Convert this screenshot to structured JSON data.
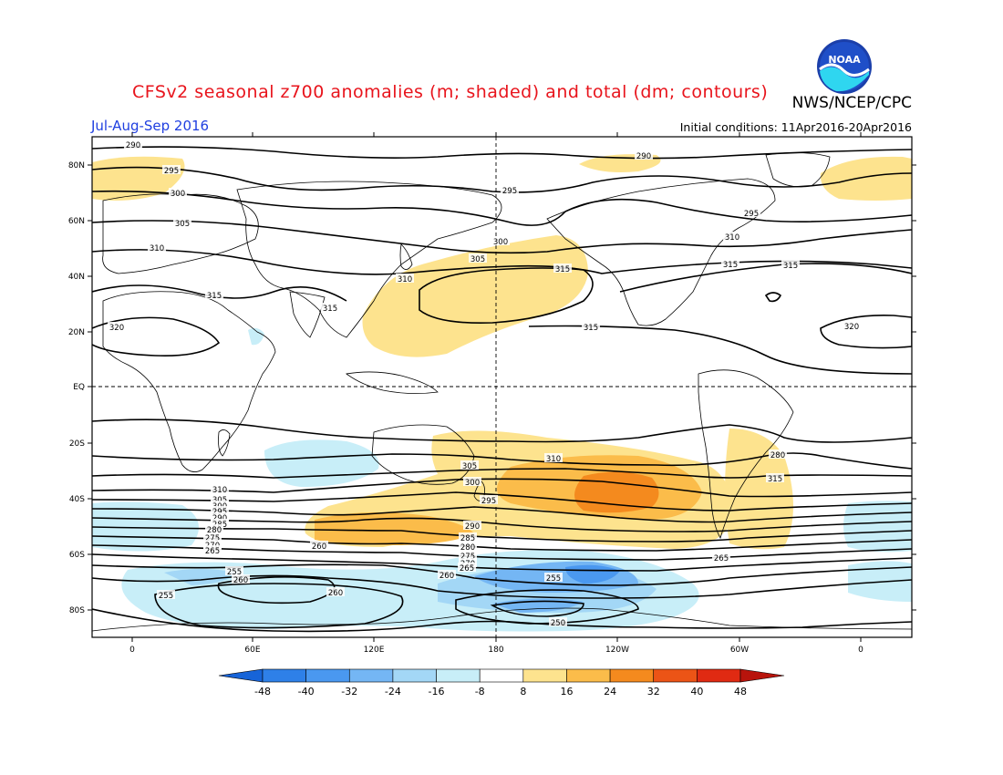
{
  "header": {
    "title": "CFSv2 seasonal z700 anomalies (m; shaded) and total (dm; contours)",
    "agency": "NWS/NCEP/CPC",
    "period": "Jul-Aug-Sep 2016",
    "initial_conditions": "Initial conditions: 11Apr2016-20Apr2016"
  },
  "logo": {
    "text": "NOAA",
    "icon": "noaa-logo"
  },
  "map": {
    "projection": "cylindrical-equidistant",
    "central_longitude": "0",
    "lat_ticks": [
      "80N",
      "60N",
      "40N",
      "20N",
      "EQ",
      "20S",
      "40S",
      "60S",
      "80S"
    ],
    "lon_ticks": [
      "0",
      "60E",
      "120E",
      "180",
      "120W",
      "60W",
      "0"
    ],
    "grid": "dashed lines at equator and 180"
  },
  "contour_labels": [
    "290",
    "295",
    "300",
    "305",
    "310",
    "315",
    "320",
    "290",
    "295",
    "295",
    "300",
    "305",
    "310",
    "315",
    "315",
    "320",
    "310",
    "315",
    "315",
    "315",
    "310",
    "305",
    "300",
    "295",
    "290",
    "285",
    "280",
    "275",
    "270",
    "265",
    "260",
    "255",
    "250",
    "310",
    "305",
    "300",
    "295",
    "290",
    "285",
    "280",
    "275",
    "270",
    "265",
    "260",
    "255",
    "260",
    "255",
    "260",
    "265",
    "280",
    "315",
    "310"
  ],
  "colorbar": {
    "labels": [
      "-48",
      "-40",
      "-32",
      "-24",
      "-16",
      "-8",
      "8",
      "16",
      "24",
      "32",
      "40",
      "48"
    ],
    "colors": [
      "#1764d8",
      "#2e80e8",
      "#4a98f0",
      "#74b6f4",
      "#a3d7f6",
      "#c8eef8",
      "#ffffff",
      "#fde38e",
      "#fbbc4a",
      "#f48a1e",
      "#ec5416",
      "#e02a12",
      "#b8140c"
    ]
  },
  "chart_data": {
    "type": "heatmap",
    "title": "CFSv2 seasonal z700 anomalies (m; shaded) and total (dm; contours)",
    "variable": "z700",
    "anomaly_units": "m",
    "contour_units": "dm",
    "contour_levels": [
      250,
      255,
      260,
      265,
      270,
      275,
      280,
      285,
      290,
      295,
      300,
      305,
      310,
      315,
      320
    ],
    "anomaly_levels": [
      -48,
      -40,
      -32,
      -24,
      -16,
      -8,
      8,
      16,
      24,
      32,
      40,
      48
    ],
    "anomaly_regions": [
      {
        "region": "Southern Pacific ~40S 130W",
        "approx_value": 24
      },
      {
        "region": "North Pacific ~35N 170W",
        "approx_value": 8
      },
      {
        "region": "Arctic near 0E and 180",
        "approx_value": 8
      },
      {
        "region": "South Indian Ocean ~50S 110E",
        "approx_value": 16
      },
      {
        "region": "South Atlantic ~45S 40W",
        "approx_value": 8
      },
      {
        "region": "Southern Ocean ~70S 150W",
        "approx_value": -24
      },
      {
        "region": "Antarctica ~75S 60E-180",
        "approx_value": -8
      }
    ]
  }
}
